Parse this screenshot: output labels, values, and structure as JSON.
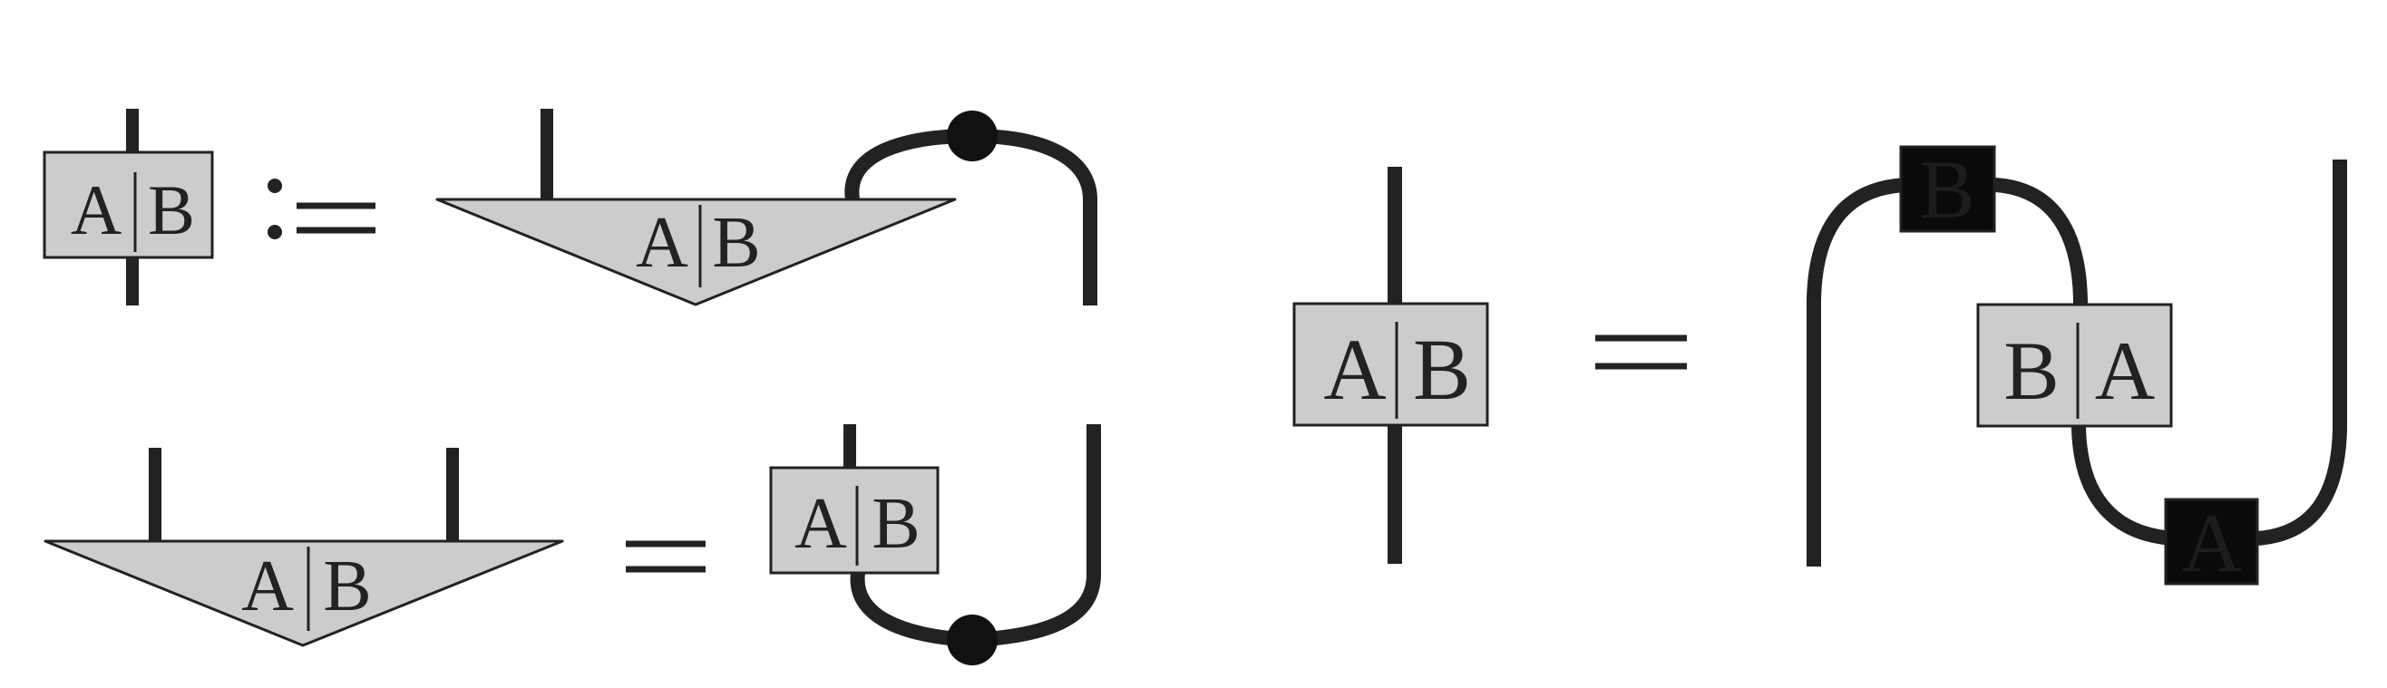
{
  "definition": {
    "box_label_left": "A",
    "box_label_right": "B",
    "definition_symbol": ":=",
    "triangle_label_left": "A",
    "triangle_label_right": "B"
  },
  "lemma": {
    "triangle_label_left": "A",
    "triangle_label_right": "B",
    "equals": "=",
    "box_label_left": "A",
    "box_label_right": "B"
  },
  "swap_identity": {
    "lhs_box_label_left": "A",
    "lhs_box_label_right": "B",
    "equals": "=",
    "top_black_box_label": "B",
    "middle_box_label_left": "B",
    "middle_box_label_right": "A",
    "bottom_black_box_label": "A"
  },
  "colors": {
    "box_fill": "#cccccc",
    "black_box_fill": "#0a0a0a",
    "stroke": "#222222",
    "background": "#ffffff"
  }
}
